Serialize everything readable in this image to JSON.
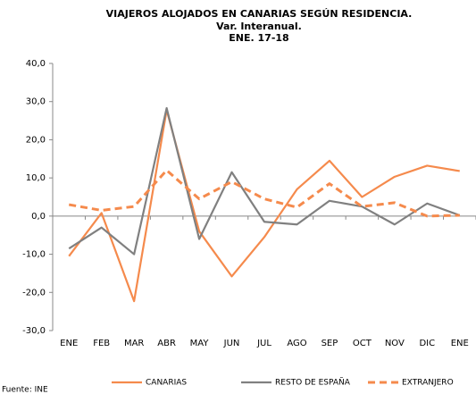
{
  "chart_data": {
    "type": "line",
    "title": "VIAJEROS ALOJADOS EN CANARIAS SEGÚN RESIDENCIA.",
    "subtitle": "Var. Interanual.",
    "subtitle2": "ENE. 17-18",
    "source": "Fuente: INE",
    "categories": [
      "ENE",
      "FEB",
      "MAR",
      "ABR",
      "MAY",
      "JUN",
      "JUL",
      "AGO",
      "SEP",
      "OCT",
      "NOV",
      "DIC",
      "ENE"
    ],
    "series": [
      {
        "name": "CANARIAS",
        "color": "#f58a4c",
        "dash": false,
        "values": [
          -10.5,
          0.8,
          -22.3,
          27.8,
          -4,
          -15.8,
          -5.5,
          7,
          14.5,
          5,
          10.3,
          13.2,
          11.8
        ]
      },
      {
        "name": "RESTO DE ESPAÑA",
        "color": "#808080",
        "dash": false,
        "values": [
          -8.5,
          -3,
          -10,
          28.3,
          -6,
          11.5,
          -1.5,
          -2.2,
          4,
          2.5,
          -2.2,
          3.3,
          0.2
        ]
      },
      {
        "name": "EXTRANJERO",
        "color": "#f58a4c",
        "dash": true,
        "values": [
          3,
          1.5,
          2.5,
          12,
          4.5,
          9,
          4.5,
          2.3,
          8.5,
          2.5,
          3.5,
          0,
          0.2
        ]
      }
    ],
    "ylim": [
      -30,
      40
    ],
    "yticks": [
      {
        "value": -30,
        "label": "-30,0"
      },
      {
        "value": -20,
        "label": "-20,0"
      },
      {
        "value": -10,
        "label": "-10,0"
      },
      {
        "value": 0,
        "label": "0,0"
      },
      {
        "value": 10,
        "label": "10,0"
      },
      {
        "value": 20,
        "label": "20,0"
      },
      {
        "value": 30,
        "label": "30,0"
      },
      {
        "value": 40,
        "label": "40,0"
      }
    ],
    "grid": false,
    "legend": "bottom"
  }
}
